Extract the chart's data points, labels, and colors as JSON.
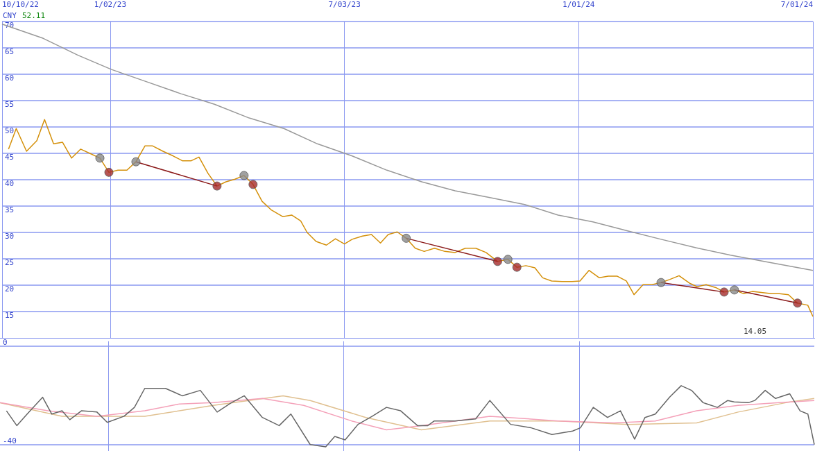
{
  "chart_data": [
    {
      "type": "line",
      "ylabel": "CNY",
      "annotations": [
        "52.11",
        "14.05"
      ],
      "xlim": [
        "2022-10-10",
        "2024-07-01"
      ],
      "xticks": [
        {
          "value": "2022-10-10",
          "label": "10/10/22"
        },
        {
          "value": "2023-01-02",
          "label": "1/02/23"
        },
        {
          "value": "2023-07-03",
          "label": "7/03/23"
        },
        {
          "value": "2024-01-01",
          "label": "1/01/24"
        },
        {
          "value": "2024-07-01",
          "label": "7/01/24"
        }
      ],
      "ylim": [
        10,
        70
      ],
      "yticks": [
        15,
        20,
        25,
        30,
        35,
        40,
        45,
        50,
        55,
        60,
        65,
        70
      ],
      "grid": true,
      "series": [
        {
          "color": "#999999",
          "x": [
            "2022-10-10",
            "2022-11-11",
            "2022-12-08",
            "2023-01-03",
            "2023-01-30",
            "2023-02-26",
            "2023-03-24",
            "2023-04-20",
            "2023-05-17",
            "2023-06-12",
            "2023-07-09",
            "2023-08-05",
            "2023-09-01",
            "2023-09-27",
            "2023-10-24",
            "2023-11-20",
            "2023-12-16",
            "2024-01-12",
            "2024-02-08",
            "2024-03-05",
            "2024-04-01",
            "2024-04-28",
            "2024-05-24",
            "2024-07-01"
          ],
          "values": [
            69.5,
            66.8,
            63.6,
            60.9,
            58.6,
            56.3,
            54.3,
            51.7,
            49.7,
            46.8,
            44.5,
            41.8,
            39.6,
            37.9,
            36.6,
            35.3,
            33.3,
            32.0,
            30.3,
            28.7,
            27.1,
            25.7,
            24.5,
            22.8
          ]
        },
        {
          "color": "#d4900a",
          "x": [
            "2022-10-15",
            "2022-10-21",
            "2022-10-29",
            "2022-11-06",
            "2022-11-12",
            "2022-11-19",
            "2022-11-26",
            "2022-12-03",
            "2022-12-10",
            "2022-12-18",
            "2022-12-25",
            "2023-01-01",
            "2023-01-08",
            "2023-01-15",
            "2023-01-22",
            "2023-01-29",
            "2023-02-04",
            "2023-02-12",
            "2023-02-20",
            "2023-02-27",
            "2023-03-06",
            "2023-03-12",
            "2023-03-19",
            "2023-03-26",
            "2023-04-02",
            "2023-04-09",
            "2023-04-16",
            "2023-04-23",
            "2023-04-30",
            "2023-05-07",
            "2023-05-16",
            "2023-05-23",
            "2023-05-30",
            "2023-06-04",
            "2023-06-11",
            "2023-06-19",
            "2023-06-26",
            "2023-07-03",
            "2023-07-09",
            "2023-07-17",
            "2023-07-24",
            "2023-07-31",
            "2023-08-06",
            "2023-08-13",
            "2023-08-20",
            "2023-08-27",
            "2023-09-03",
            "2023-09-11",
            "2023-09-19",
            "2023-09-27",
            "2023-10-05",
            "2023-10-13",
            "2023-10-21",
            "2023-10-30",
            "2023-11-07",
            "2023-11-14",
            "2023-11-21",
            "2023-11-28",
            "2023-12-04",
            "2023-12-11",
            "2023-12-19",
            "2023-12-27",
            "2024-01-02",
            "2024-01-09",
            "2024-01-17",
            "2024-01-24",
            "2024-01-31",
            "2024-02-07",
            "2024-02-13",
            "2024-02-20",
            "2024-02-27",
            "2024-03-05",
            "2024-03-12",
            "2024-03-19",
            "2024-03-27",
            "2024-04-02",
            "2024-04-09",
            "2024-04-17",
            "2024-04-23",
            "2024-05-01",
            "2024-05-08",
            "2024-05-15",
            "2024-05-23",
            "2024-05-30",
            "2024-06-05",
            "2024-06-12",
            "2024-06-19",
            "2024-06-27",
            "2024-07-01"
          ],
          "values": [
            45.8,
            49.7,
            45.4,
            47.4,
            51.4,
            46.8,
            47.1,
            44.1,
            45.8,
            44.9,
            44.1,
            41.4,
            41.8,
            41.8,
            43.4,
            46.4,
            46.4,
            45.4,
            44.5,
            43.6,
            43.6,
            44.3,
            41.2,
            38.8,
            39.6,
            40.1,
            40.8,
            39.1,
            35.9,
            34.3,
            33.0,
            33.3,
            32.2,
            30.0,
            28.3,
            27.6,
            28.8,
            27.8,
            28.7,
            29.3,
            29.6,
            28.0,
            29.6,
            30.1,
            28.9,
            27.0,
            26.4,
            27.0,
            26.4,
            26.2,
            27.0,
            27.0,
            26.2,
            24.5,
            24.9,
            23.4,
            23.7,
            23.3,
            21.4,
            20.8,
            20.7,
            20.7,
            20.8,
            22.8,
            21.4,
            21.7,
            21.7,
            20.8,
            18.2,
            20.1,
            20.1,
            20.5,
            21.1,
            21.8,
            20.4,
            19.7,
            20.1,
            19.5,
            18.7,
            19.1,
            18.4,
            18.8,
            18.6,
            18.4,
            18.4,
            18.2,
            16.6,
            16.2,
            14.05
          ]
        },
        {
          "type": "line",
          "color": "#8b1a1a",
          "x": [
            "2023-01-22",
            "2023-03-26"
          ],
          "values": [
            43.4,
            38.8
          ]
        },
        {
          "type": "line",
          "color": "#8b1a1a",
          "x": [
            "2023-08-20",
            "2023-10-30"
          ],
          "values": [
            28.9,
            24.5
          ]
        },
        {
          "type": "line",
          "color": "#8b1a1a",
          "x": [
            "2024-03-05",
            "2024-04-23"
          ],
          "values": [
            20.5,
            18.7
          ]
        },
        {
          "type": "line",
          "color": "#8b1a1a",
          "x": [
            "2024-05-01",
            "2024-06-19"
          ],
          "values": [
            19.1,
            16.6
          ]
        },
        {
          "type": "scatter",
          "marker": "circle",
          "color": "#888888",
          "x": [
            "2022-12-25",
            "2023-01-22",
            "2023-04-16",
            "2023-08-20",
            "2023-11-07",
            "2024-03-05",
            "2024-05-01"
          ],
          "values": [
            44.1,
            43.4,
            40.8,
            28.9,
            24.9,
            20.5,
            19.1
          ]
        },
        {
          "type": "scatter",
          "marker": "circle",
          "color": "#a52a2a",
          "x": [
            "2023-01-01",
            "2023-03-26",
            "2023-04-23",
            "2023-10-30",
            "2023-11-14",
            "2024-04-23",
            "2024-06-19"
          ],
          "values": [
            41.4,
            38.8,
            39.1,
            24.5,
            23.4,
            18.7,
            16.6
          ]
        }
      ]
    },
    {
      "type": "line",
      "tick_labels": "y",
      "grid": true,
      "xlim": [
        "2022-10-10",
        "2024-07-01"
      ],
      "xticks": [
        {
          "value": "2023-01-02",
          "label": null
        },
        {
          "value": "2023-07-03",
          "label": null
        },
        {
          "value": "2024-01-01",
          "label": null
        }
      ],
      "ylim": [
        -42.5,
        2
      ],
      "yticks": [
        -40,
        0
      ],
      "series": [
        {
          "color": "#e0c090",
          "x": [
            "2022-10-10",
            "2022-11-27",
            "2023-01-30",
            "2023-03-24",
            "2023-05-17",
            "2023-06-07",
            "2023-07-20",
            "2023-09-01",
            "2023-10-24",
            "2023-12-16",
            "2024-02-08",
            "2024-04-01",
            "2024-05-03",
            "2024-06-09",
            "2024-07-01"
          ],
          "values": [
            -22.9,
            -28.4,
            -28.4,
            -24.0,
            -20.1,
            -22.0,
            -28.9,
            -33.9,
            -30.3,
            -30.3,
            -31.7,
            -31.1,
            -26.7,
            -22.9,
            -21.2
          ]
        },
        {
          "color": "#f4a0b8",
          "x": [
            "2022-10-10",
            "2022-11-16",
            "2022-12-24",
            "2023-01-30",
            "2023-02-26",
            "2023-03-24",
            "2023-05-01",
            "2023-06-02",
            "2023-07-09",
            "2023-08-05",
            "2023-09-01",
            "2023-10-24",
            "2023-12-16",
            "2024-01-28",
            "2024-02-29",
            "2024-04-01",
            "2024-05-03",
            "2024-06-04",
            "2024-07-01"
          ],
          "values": [
            -22.9,
            -26.2,
            -28.4,
            -26.2,
            -23.4,
            -22.9,
            -21.2,
            -24.0,
            -30.3,
            -33.9,
            -32.2,
            -28.4,
            -30.3,
            -31.1,
            -30.3,
            -26.2,
            -24.0,
            -22.9,
            -22.0
          ]
        },
        {
          "color": "#666666",
          "x": [
            "2022-10-15",
            "2022-10-23",
            "2022-10-31",
            "2022-11-12",
            "2022-11-19",
            "2022-11-27",
            "2022-12-03",
            "2022-12-12",
            "2022-12-24",
            "2023-01-01",
            "2023-01-14",
            "2023-01-22",
            "2023-01-30",
            "2023-02-15",
            "2023-02-28",
            "2023-03-14",
            "2023-03-27",
            "2023-04-07",
            "2023-04-17",
            "2023-05-01",
            "2023-05-14",
            "2023-05-23",
            "2023-06-07",
            "2023-06-19",
            "2023-06-26",
            "2023-07-04",
            "2023-07-14",
            "2023-07-25",
            "2023-08-05",
            "2023-08-16",
            "2023-08-29",
            "2023-09-06",
            "2023-09-11",
            "2023-09-27",
            "2023-10-13",
            "2023-10-24",
            "2023-11-09",
            "2023-11-25",
            "2023-12-11",
            "2023-12-27",
            "2024-01-02",
            "2024-01-12",
            "2024-01-23",
            "2024-02-02",
            "2024-02-13",
            "2024-02-21",
            "2024-02-29",
            "2024-03-11",
            "2024-03-20",
            "2024-03-28",
            "2024-04-06",
            "2024-04-17",
            "2024-04-25",
            "2024-04-30",
            "2024-05-11",
            "2024-05-16",
            "2024-05-24",
            "2024-06-01",
            "2024-06-12",
            "2024-06-20",
            "2024-06-26",
            "2024-07-01"
          ],
          "values": [
            -26.2,
            -32.2,
            -27.5,
            -20.7,
            -27.5,
            -26.2,
            -29.8,
            -26.2,
            -26.7,
            -30.9,
            -28.4,
            -24.8,
            -17.1,
            -17.1,
            -20.1,
            -17.9,
            -26.7,
            -22.9,
            -20.1,
            -28.9,
            -32.2,
            -27.5,
            -39.9,
            -40.8,
            -36.6,
            -38.0,
            -31.7,
            -28.4,
            -24.8,
            -26.2,
            -32.2,
            -32.2,
            -30.3,
            -30.3,
            -29.5,
            -22.0,
            -31.7,
            -33.1,
            -35.8,
            -34.4,
            -33.1,
            -24.8,
            -28.9,
            -26.2,
            -37.7,
            -28.9,
            -27.5,
            -20.7,
            -16.0,
            -17.9,
            -22.9,
            -24.8,
            -22.0,
            -22.6,
            -22.9,
            -22.0,
            -17.9,
            -21.2,
            -19.3,
            -26.2,
            -27.5,
            -39.9
          ]
        }
      ]
    }
  ]
}
